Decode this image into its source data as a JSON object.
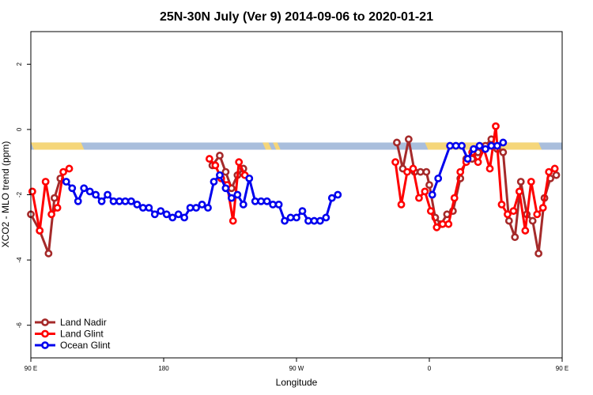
{
  "chart_data": {
    "type": "line",
    "title": "25N-30N July (Ver 9)   2014-09-06 to 2020-01-21",
    "xlabel": "Longitude",
    "ylabel": "XCO2 - MLO trend (ppm)",
    "xlim": [
      90,
      450
    ],
    "ylim": [
      -7,
      3
    ],
    "x_ticks": [
      {
        "value": 90,
        "label": "90 E"
      },
      {
        "value": 180,
        "label": "180"
      },
      {
        "value": 270,
        "label": "90 W"
      },
      {
        "value": 360,
        "label": "0"
      },
      {
        "value": 450,
        "label": "90 E"
      },
      {
        "value": 540,
        "label": "180"
      }
    ],
    "x_ticks_note": "longitude axis spans 90E eastward through 180 to 180 (unwrapped 90..540)",
    "y_ticks": [
      {
        "value": 2,
        "label": "2"
      },
      {
        "value": 0,
        "label": "0"
      },
      {
        "value": -2,
        "label": "-2"
      },
      {
        "value": -4,
        "label": "-4"
      },
      {
        "value": -6,
        "label": "-6"
      }
    ],
    "legend_position": "bottom-left",
    "band": {
      "y_top": -0.4,
      "y_bottom": -0.62,
      "land_color": "#F5D67A",
      "ocean_color": "#A9BEDC",
      "land_segments": [
        [
          90,
          124
        ],
        [
          247,
          251
        ],
        [
          254,
          257
        ],
        [
          357,
          434
        ]
      ]
    },
    "series": [
      {
        "name": "Land Nadir",
        "color": "#A52A2A",
        "points": [
          [
            89,
            -2.6
          ],
          [
            96,
            -3.1
          ],
          [
            102,
            -3.8
          ],
          [
            106,
            -2.1
          ],
          [
            110,
            -1.5
          ],
          [
            213,
            -1.1
          ],
          [
            218,
            -0.8
          ],
          [
            222,
            -1.3
          ],
          [
            226,
            -1.8
          ],
          [
            230,
            -1.4
          ],
          [
            234,
            -1.2
          ],
          [
            338,
            -0.4
          ],
          [
            342,
            -1.2
          ],
          [
            346,
            -0.3
          ],
          [
            350,
            -1.3
          ],
          [
            354,
            -1.3
          ],
          [
            358,
            -1.3
          ],
          [
            360,
            -1.7
          ],
          [
            364,
            -2.7
          ],
          [
            368,
            -2.9
          ],
          [
            372,
            -2.6
          ],
          [
            376,
            -2.5
          ],
          [
            381,
            -1.5
          ],
          [
            385,
            -0.9
          ],
          [
            389,
            -0.9
          ],
          [
            393,
            -0.7
          ],
          [
            398,
            -0.5
          ],
          [
            402,
            -0.3
          ],
          [
            406,
            -0.6
          ],
          [
            410,
            -0.7
          ],
          [
            414,
            -2.8
          ],
          [
            418,
            -3.3
          ],
          [
            422,
            -1.6
          ],
          [
            426,
            -2.6
          ],
          [
            430,
            -2.8
          ],
          [
            434,
            -3.8
          ],
          [
            438,
            -2.1
          ],
          [
            442,
            -1.5
          ],
          [
            446,
            -1.4
          ]
        ]
      },
      {
        "name": "Land Glint",
        "color": "#FF0000",
        "points": [
          [
            91,
            -1.9
          ],
          [
            96,
            -3.1
          ],
          [
            100,
            -1.6
          ],
          [
            104,
            -2.6
          ],
          [
            108,
            -2.4
          ],
          [
            112,
            -1.3
          ],
          [
            116,
            -1.2
          ],
          [
            211,
            -0.9
          ],
          [
            215,
            -1.1
          ],
          [
            219,
            -1.5
          ],
          [
            223,
            -1.7
          ],
          [
            227,
            -2.8
          ],
          [
            231,
            -1.0
          ],
          [
            235,
            -1.4
          ],
          [
            337,
            -1.0
          ],
          [
            341,
            -2.3
          ],
          [
            345,
            -1.3
          ],
          [
            349,
            -1.2
          ],
          [
            353,
            -2.1
          ],
          [
            357,
            -1.9
          ],
          [
            361,
            -2.5
          ],
          [
            365,
            -3.0
          ],
          [
            369,
            -2.9
          ],
          [
            373,
            -2.9
          ],
          [
            377,
            -2.1
          ],
          [
            381,
            -1.3
          ],
          [
            385,
            -1.0
          ],
          [
            389,
            -0.7
          ],
          [
            393,
            -1.0
          ],
          [
            397,
            -0.6
          ],
          [
            401,
            -1.2
          ],
          [
            405,
            0.1
          ],
          [
            409,
            -2.3
          ],
          [
            413,
            -2.6
          ],
          [
            417,
            -2.5
          ],
          [
            421,
            -1.9
          ],
          [
            425,
            -3.1
          ],
          [
            429,
            -1.6
          ],
          [
            433,
            -2.6
          ],
          [
            437,
            -2.4
          ],
          [
            441,
            -1.3
          ],
          [
            445,
            -1.2
          ]
        ]
      },
      {
        "name": "Ocean Glint",
        "color": "#0000EE",
        "points": [
          [
            114,
            -1.6
          ],
          [
            118,
            -1.8
          ],
          [
            122,
            -2.2
          ],
          [
            126,
            -1.8
          ],
          [
            130,
            -1.9
          ],
          [
            134,
            -2.0
          ],
          [
            138,
            -2.2
          ],
          [
            142,
            -2.0
          ],
          [
            146,
            -2.2
          ],
          [
            150,
            -2.2
          ],
          [
            154,
            -2.2
          ],
          [
            158,
            -2.2
          ],
          [
            162,
            -2.3
          ],
          [
            166,
            -2.4
          ],
          [
            170,
            -2.4
          ],
          [
            174,
            -2.6
          ],
          [
            178,
            -2.5
          ],
          [
            182,
            -2.6
          ],
          [
            186,
            -2.7
          ],
          [
            190,
            -2.6
          ],
          [
            194,
            -2.7
          ],
          [
            198,
            -2.4
          ],
          [
            202,
            -2.4
          ],
          [
            206,
            -2.3
          ],
          [
            210,
            -2.4
          ],
          [
            214,
            -1.6
          ],
          [
            218,
            -1.4
          ],
          [
            222,
            -1.8
          ],
          [
            226,
            -2.1
          ],
          [
            230,
            -2.0
          ],
          [
            234,
            -2.3
          ],
          [
            238,
            -1.5
          ],
          [
            242,
            -2.2
          ],
          [
            246,
            -2.2
          ],
          [
            250,
            -2.2
          ],
          [
            254,
            -2.3
          ],
          [
            258,
            -2.3
          ],
          [
            262,
            -2.8
          ],
          [
            266,
            -2.7
          ],
          [
            270,
            -2.7
          ],
          [
            274,
            -2.5
          ],
          [
            278,
            -2.8
          ],
          [
            282,
            -2.8
          ],
          [
            286,
            -2.8
          ],
          [
            290,
            -2.7
          ],
          [
            294,
            -2.1
          ],
          [
            298,
            -2.0
          ],
          [
            362,
            -2.0
          ],
          [
            366,
            -1.5
          ],
          [
            374,
            -0.5
          ],
          [
            378,
            -0.5
          ],
          [
            382,
            -0.5
          ],
          [
            386,
            -0.9
          ],
          [
            390,
            -0.6
          ],
          [
            394,
            -0.5
          ],
          [
            398,
            -0.6
          ],
          [
            402,
            -0.5
          ],
          [
            406,
            -0.5
          ],
          [
            410,
            -0.4
          ]
        ]
      }
    ]
  }
}
